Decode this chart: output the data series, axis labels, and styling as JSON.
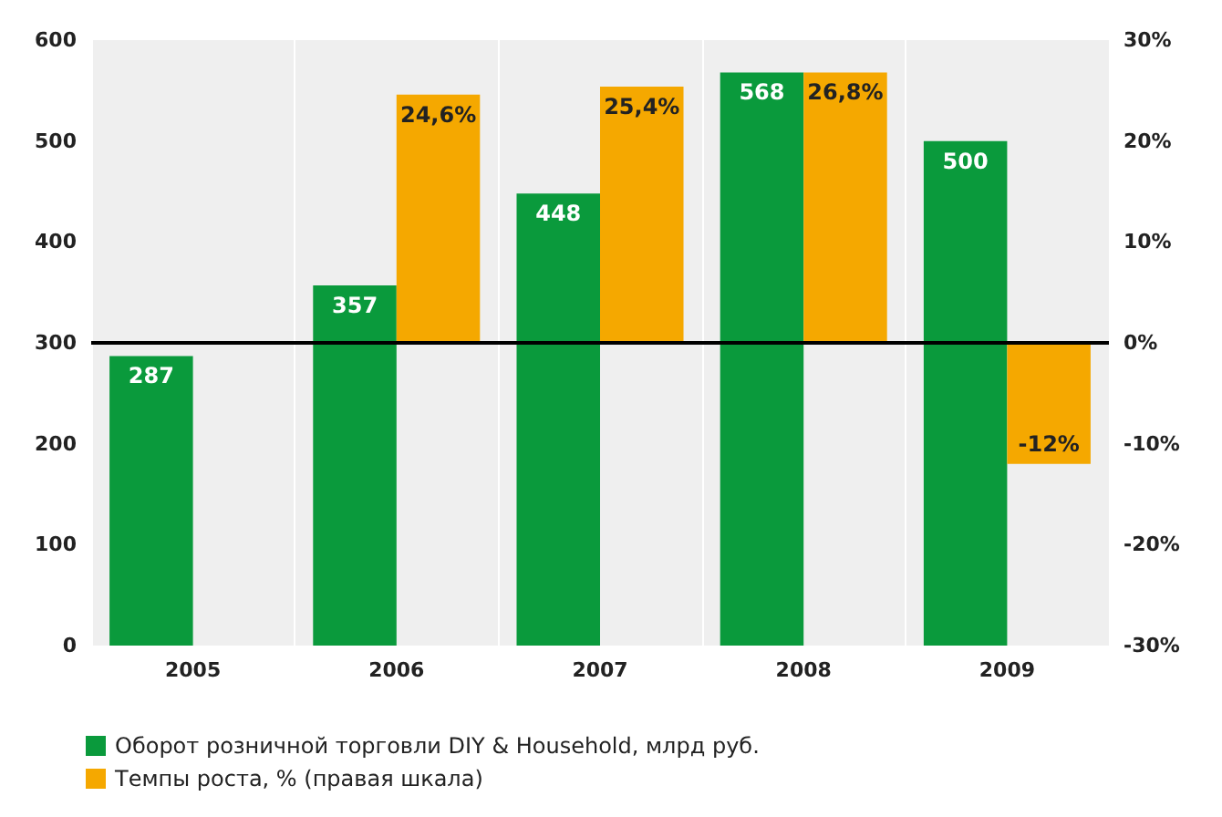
{
  "chart_data": {
    "type": "bar",
    "categories": [
      "2005",
      "2006",
      "2007",
      "2008",
      "2009"
    ],
    "series": [
      {
        "name": "Оборот розничной торговли DIY & Household, млрд руб.",
        "color": "#0a9a3c",
        "values": [
          287,
          357,
          448,
          568,
          500
        ],
        "value_labels": [
          "287",
          "357",
          "448",
          "568",
          "500"
        ]
      },
      {
        "name": "Темпы роста, % (правая шкала)",
        "color": "#f5a800",
        "axis": "y2",
        "values": [
          null,
          24.6,
          25.4,
          26.8,
          -12
        ],
        "value_labels": [
          null,
          "24,6%",
          "25,4%",
          "26,8%",
          "-12%"
        ]
      }
    ],
    "ylim": [
      0,
      600
    ],
    "yticks": [
      0,
      100,
      200,
      300,
      400,
      500,
      600
    ],
    "y2lim": [
      -30,
      30
    ],
    "y2ticks": [
      {
        "value": -30,
        "label": "-30%"
      },
      {
        "value": -20,
        "label": "-20%"
      },
      {
        "value": -10,
        "label": "-10%"
      },
      {
        "value": 0,
        "label": "0%"
      },
      {
        "value": 10,
        "label": "10%"
      },
      {
        "value": 20,
        "label": "20%"
      },
      {
        "value": 30,
        "label": "30%"
      }
    ],
    "ref_lines": [
      {
        "axis": "y2",
        "value": 0,
        "color": "#000000"
      }
    ],
    "grid": "x",
    "legend": "bottom left"
  }
}
